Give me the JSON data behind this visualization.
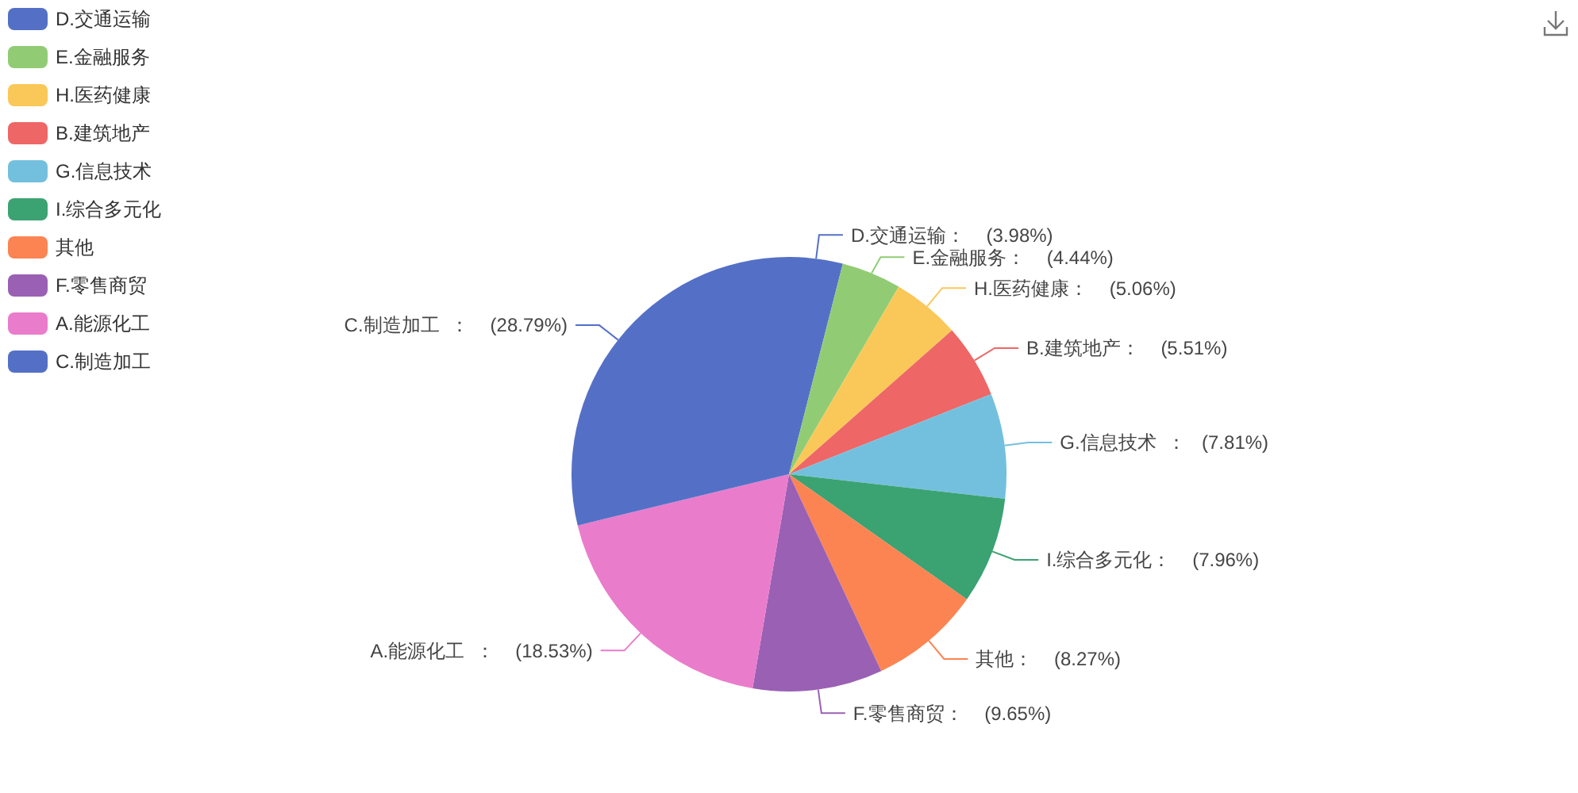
{
  "chart_data": {
    "type": "pie",
    "categories": [
      "D.交通运输",
      "E.金融服务",
      "H.医药健康",
      "B.建筑地产",
      "G.信息技术",
      "I.综合多元化",
      "其他",
      "F.零售商贸",
      "A.能源化工",
      "C.制造加工"
    ],
    "values": [
      3.98,
      4.44,
      5.06,
      5.51,
      7.81,
      7.96,
      8.27,
      9.65,
      18.53,
      28.79
    ],
    "value_labels": [
      "D.交通运输：    (3.98%)",
      "E.金融服务：    (4.44%)",
      "H.医药健康：    (5.06%)",
      "B.建筑地产：    (5.51%)",
      "G.信息技术  ：   (7.81%)",
      "I.综合多元化：    (7.96%)",
      "其他：    (8.27%)",
      "F.零售商贸：    (9.65%)",
      "A.能源化工  ：    (18.53%)",
      "C.制造加工  ：    (28.79%)"
    ],
    "colors": [
      "#5470c6",
      "#91cc75",
      "#fac858",
      "#ee6666",
      "#73c0de",
      "#3ba272",
      "#fc8452",
      "#9a60b4",
      "#ea7ccc",
      "#5470c6"
    ],
    "legend": "top left"
  }
}
